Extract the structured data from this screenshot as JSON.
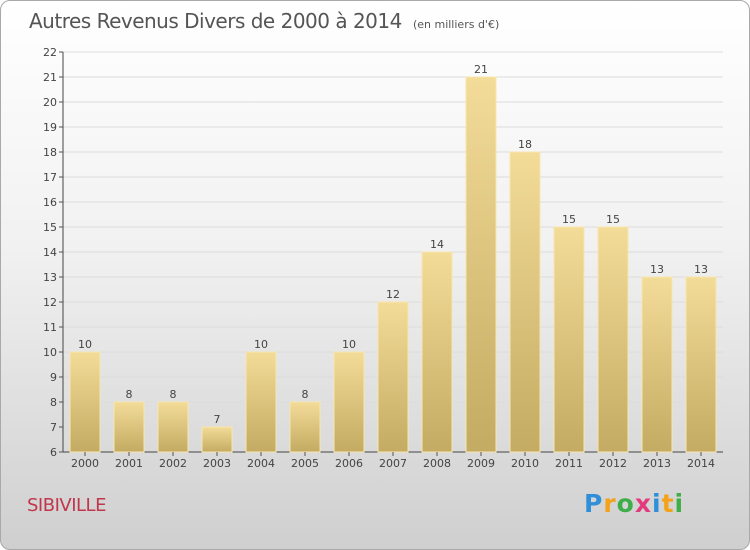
{
  "chart_data": {
    "type": "bar",
    "title": "Autres Revenus Divers de 2000 à 2014",
    "subtitle": "(en milliers d'€)",
    "categories": [
      "2000",
      "2001",
      "2002",
      "2003",
      "2004",
      "2005",
      "2006",
      "2007",
      "2008",
      "2009",
      "2010",
      "2011",
      "2012",
      "2013",
      "2014"
    ],
    "values": [
      10,
      8,
      8,
      7,
      10,
      8,
      10,
      12,
      14,
      21,
      18,
      15,
      15,
      13,
      13
    ],
    "ylim": [
      6,
      22
    ],
    "yticks": [
      6,
      7,
      8,
      9,
      10,
      11,
      12,
      13,
      14,
      15,
      16,
      17,
      18,
      19,
      20,
      21,
      22
    ],
    "grid": true,
    "bar_color": "#e6cc86"
  },
  "place_name": "SIBIVILLE",
  "logo": {
    "text": "Proxiti",
    "letters": [
      {
        "ch": "P",
        "color": "#2f8fd8"
      },
      {
        "ch": "r",
        "color": "#f3a21c"
      },
      {
        "ch": "o",
        "color": "#3fae49"
      },
      {
        "ch": "x",
        "color": "#e23b7e"
      },
      {
        "ch": "i",
        "color": "#2f8fd8"
      },
      {
        "ch": "t",
        "color": "#f3a21c"
      },
      {
        "ch": "i",
        "color": "#3fae49"
      }
    ]
  }
}
